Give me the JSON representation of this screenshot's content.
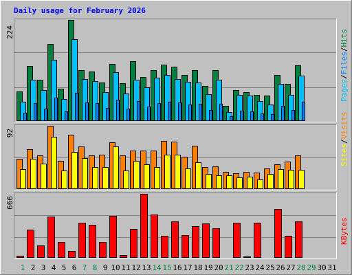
{
  "chart_data": {
    "type": "bar",
    "title": "Daily usage for February 2026",
    "days": [
      "1",
      "2",
      "3",
      "4",
      "5",
      "6",
      "7",
      "8",
      "9",
      "10",
      "11",
      "12",
      "13",
      "14",
      "15",
      "16",
      "17",
      "18",
      "19",
      "20",
      "21",
      "22",
      "23",
      "24",
      "25",
      "26",
      "27",
      "28",
      "29",
      "30",
      "31"
    ],
    "weekend_days": [
      1,
      7,
      8,
      14,
      15,
      21,
      22,
      28,
      29
    ],
    "colors": {
      "hits": "#008040",
      "files": "#00c0ff",
      "pages": "#0080ff",
      "sites": "#ffff00",
      "visits": "#ff8000",
      "kbytes": "#ff0000",
      "title": "#0000ff",
      "weekend": "#008040",
      "weekday": "#000000"
    },
    "panels": [
      {
        "max_label": "224",
        "max": 224,
        "legend": [
          {
            "label": "Pages",
            "color": "#00c0ff"
          },
          {
            "label": "Files",
            "color": "#0080ff"
          },
          {
            "label": "Hits",
            "color": "#008040"
          }
        ],
        "series": [
          {
            "name": "Hits",
            "values": [
              65,
              122,
              92,
              170,
              72,
              224,
              112,
              109,
              85,
              126,
              84,
              132,
              97,
              113,
              125,
              120,
              102,
              112,
              78,
              112,
              33,
              68,
              64,
              58,
              57,
              102,
              83,
              123,
              0,
              0,
              0
            ]
          },
          {
            "name": "Files",
            "values": [
              43,
              92,
              68,
              135,
              48,
              182,
              93,
              89,
              64,
              108,
              61,
              92,
              74,
              96,
              102,
              93,
              87,
              86,
              59,
              92,
              20,
              58,
              56,
              44,
              36,
              82,
              58,
              100,
              0,
              0,
              0
            ]
          },
          {
            "name": "Pages",
            "values": [
              18,
              39,
              27,
              52,
              21,
              63,
              41,
              40,
              29,
              47,
              28,
              44,
              32,
              39,
              42,
              41,
              36,
              38,
              25,
              38,
              11,
              23,
              22,
              17,
              15,
              33,
              24,
              42,
              0,
              0,
              0
            ]
          }
        ]
      },
      {
        "max_label": "92",
        "max": 92,
        "legend": [
          {
            "label": "Sites",
            "color": "#ffff00"
          },
          {
            "label": "Visits",
            "color": "#ff8000"
          }
        ],
        "series": [
          {
            "name": "Visits",
            "values": [
              44,
              58,
              49,
              92,
              41,
              79,
              62,
              49,
              50,
              68,
              49,
              56,
              56,
              56,
              70,
              69,
              47,
              63,
              32,
              33,
              25,
              23,
              25,
              24,
              30,
              36,
              40,
              49,
              0,
              0,
              0
            ]
          },
          {
            "name": "Sites",
            "values": [
              29,
              44,
              37,
              76,
              27,
              54,
              45,
              32,
              32,
              62,
              27,
              41,
              36,
              32,
              50,
              50,
              30,
              39,
              22,
              20,
              20,
              17,
              18,
              14,
              22,
              29,
              28,
              28,
              0,
              0,
              0
            ]
          }
        ]
      },
      {
        "max_label": "666",
        "max": 666,
        "legend": [
          {
            "label": "KBytes",
            "color": "#ff0000"
          }
        ],
        "series": [
          {
            "name": "KBytes",
            "values": [
              22,
              291,
              129,
              427,
              168,
              70,
              368,
              343,
              162,
              436,
              27,
              303,
              666,
              448,
              227,
              380,
              235,
              329,
              357,
              311,
              0,
              367,
              14,
              367,
              10,
              509,
              231,
              376,
              0,
              0,
              0
            ]
          }
        ]
      }
    ]
  }
}
